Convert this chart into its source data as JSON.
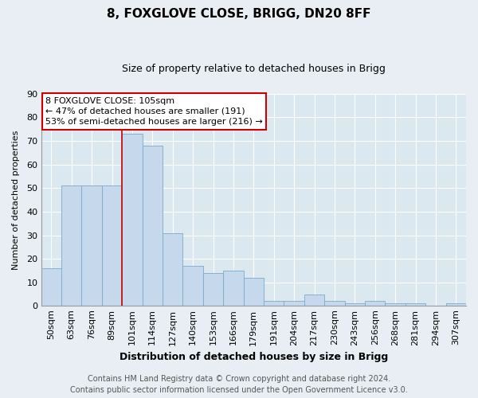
{
  "title": "8, FOXGLOVE CLOSE, BRIGG, DN20 8FF",
  "subtitle": "Size of property relative to detached houses in Brigg",
  "xlabel": "Distribution of detached houses by size in Brigg",
  "ylabel": "Number of detached properties",
  "categories": [
    "50sqm",
    "63sqm",
    "76sqm",
    "89sqm",
    "101sqm",
    "114sqm",
    "127sqm",
    "140sqm",
    "153sqm",
    "166sqm",
    "179sqm",
    "191sqm",
    "204sqm",
    "217sqm",
    "230sqm",
    "243sqm",
    "256sqm",
    "268sqm",
    "281sqm",
    "294sqm",
    "307sqm"
  ],
  "values": [
    16,
    51,
    51,
    51,
    73,
    68,
    31,
    17,
    14,
    15,
    12,
    2,
    2,
    5,
    2,
    1,
    2,
    1,
    1,
    0,
    1
  ],
  "bar_color": "#c6d9ec",
  "bar_edge_color": "#7aaac8",
  "highlight_bar_index": 4,
  "highlight_line_color": "#cc0000",
  "annotation_title": "8 FOXGLOVE CLOSE: 105sqm",
  "annotation_line1": "← 47% of detached houses are smaller (191)",
  "annotation_line2": "53% of semi-detached houses are larger (216) →",
  "annotation_box_facecolor": "#ffffff",
  "annotation_box_edgecolor": "#cc0000",
  "ylim": [
    0,
    90
  ],
  "yticks": [
    0,
    10,
    20,
    30,
    40,
    50,
    60,
    70,
    80,
    90
  ],
  "footer_line1": "Contains HM Land Registry data © Crown copyright and database right 2024.",
  "footer_line2": "Contains public sector information licensed under the Open Government Licence v3.0.",
  "plot_bg_color": "#dce8f0",
  "fig_bg_color": "#e8eef4",
  "grid_color": "#ffffff",
  "title_fontsize": 11,
  "subtitle_fontsize": 9,
  "xlabel_fontsize": 9,
  "ylabel_fontsize": 8,
  "tick_fontsize": 8,
  "annotation_fontsize": 8,
  "footer_fontsize": 7
}
